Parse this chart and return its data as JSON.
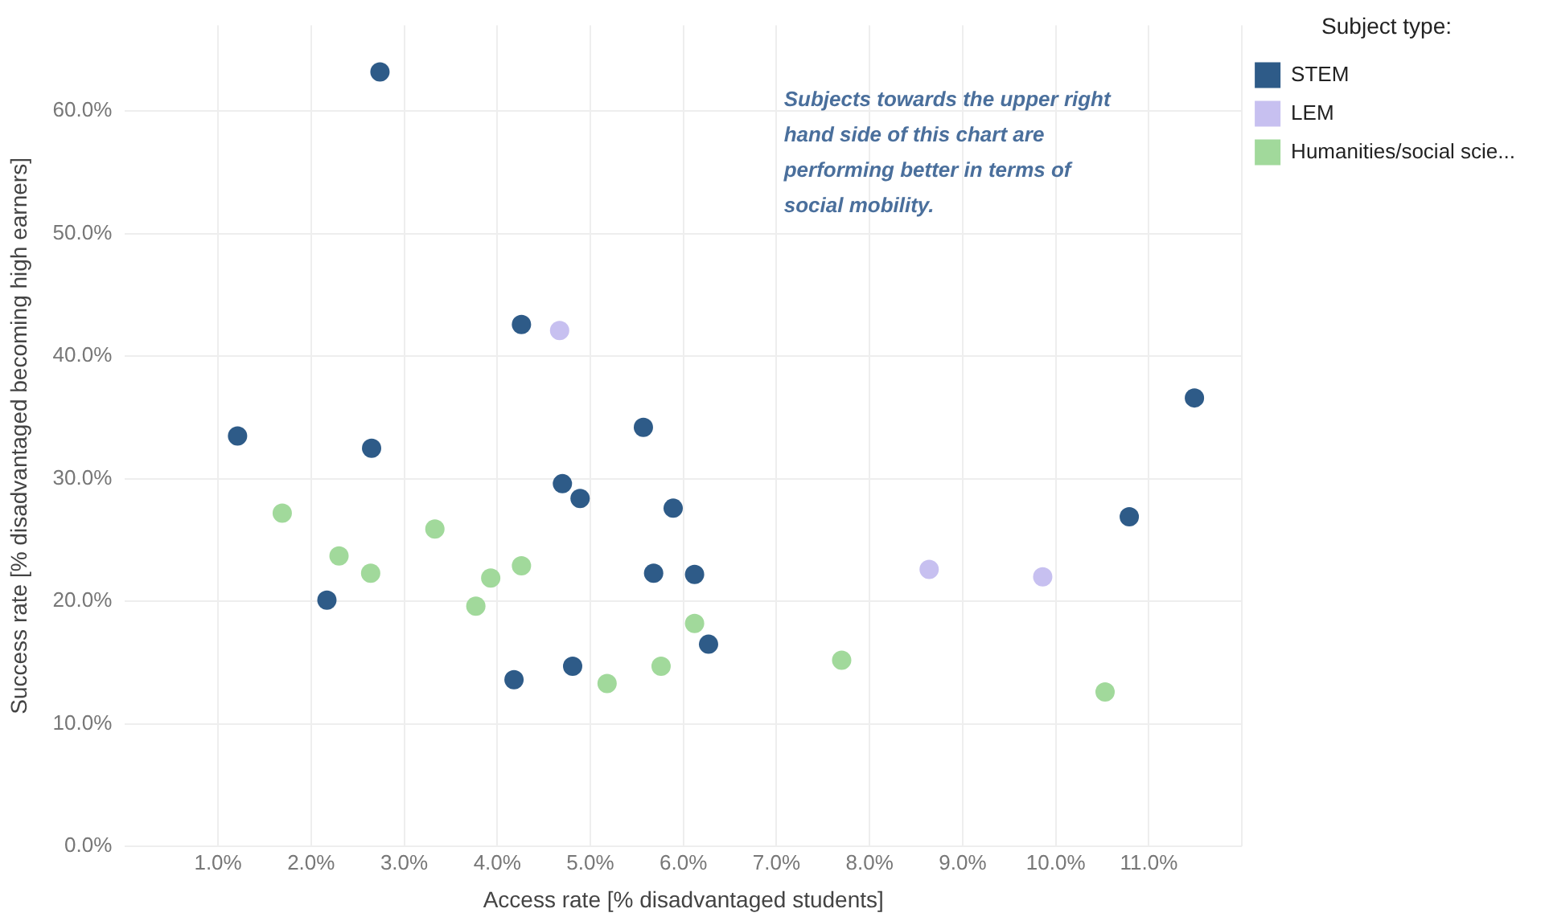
{
  "chart_data": {
    "type": "scatter",
    "xlabel": "Access rate [% disadvantaged students]",
    "ylabel": "Success rate [% disadvantaged becoming high earners]",
    "legend_title": "Subject type:",
    "legend": "top right",
    "grid": true,
    "marker": "circle",
    "annotations": [
      "Subjects towards the upper right hand side of this chart are performing better in terms of social mobility."
    ],
    "xlim": [
      0,
      12
    ],
    "xticks": [
      {
        "value": 1,
        "label": "1.0%"
      },
      {
        "value": 2,
        "label": "2.0%"
      },
      {
        "value": 3,
        "label": "3.0%"
      },
      {
        "value": 4,
        "label": "4.0%"
      },
      {
        "value": 5,
        "label": "5.0%"
      },
      {
        "value": 6,
        "label": "6.0%"
      },
      {
        "value": 7,
        "label": "7.0%"
      },
      {
        "value": 8,
        "label": "8.0%"
      },
      {
        "value": 9,
        "label": "9.0%"
      },
      {
        "value": 10,
        "label": "10.0%"
      },
      {
        "value": 11,
        "label": "11.0%"
      },
      {
        "value": 12,
        "label": null
      }
    ],
    "ylim": [
      0,
      67
    ],
    "yticks": [
      {
        "value": 0,
        "label": "0.0%"
      },
      {
        "value": 10,
        "label": "10.0%"
      },
      {
        "value": 20,
        "label": "20.0%"
      },
      {
        "value": 30,
        "label": "30.0%"
      },
      {
        "value": 40,
        "label": "40.0%"
      },
      {
        "value": 50,
        "label": "50.0%"
      },
      {
        "value": 60,
        "label": "60.0%"
      }
    ],
    "series": [
      {
        "name": "STEM",
        "color": "#2e5b88",
        "x": [
          2.74,
          4.26,
          1.21,
          2.65,
          5.57,
          11.49,
          4.7,
          4.89,
          5.89,
          2.17,
          5.68,
          6.12,
          6.27,
          4.81,
          4.18,
          10.79
        ],
        "values": [
          63.2,
          42.6,
          33.5,
          32.5,
          34.2,
          36.6,
          29.6,
          28.4,
          27.6,
          20.1,
          22.3,
          22.2,
          16.5,
          14.7,
          13.6,
          26.9
        ]
      },
      {
        "name": "LEM",
        "color": "#c7c0f0",
        "x": [
          4.67,
          8.64,
          9.86
        ],
        "values": [
          42.1,
          22.6,
          22.0
        ]
      },
      {
        "name": "Humanities/social scie...",
        "color": "#a1d99b",
        "x": [
          1.69,
          3.33,
          2.3,
          2.64,
          3.93,
          4.26,
          3.77,
          6.12,
          5.76,
          5.18,
          7.7,
          10.53
        ],
        "values": [
          27.2,
          25.9,
          23.7,
          22.3,
          21.9,
          22.9,
          19.6,
          18.2,
          14.7,
          13.3,
          15.2,
          12.6
        ]
      }
    ]
  }
}
